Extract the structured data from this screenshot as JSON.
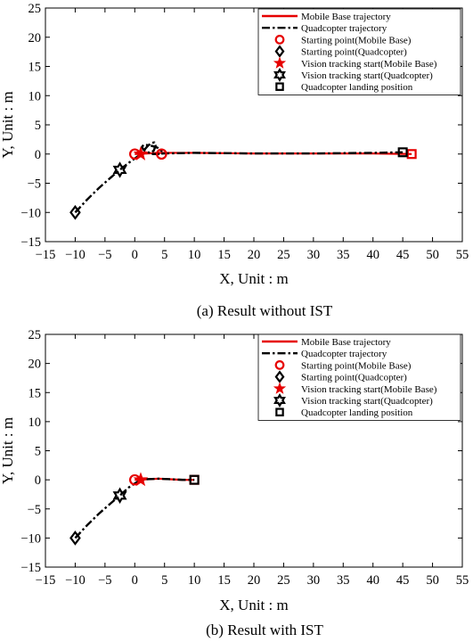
{
  "chart_data": [
    {
      "type": "line",
      "caption": "(a) Result without IST",
      "xlabel": "X, Unit : m",
      "ylabel": "Y, Unit : m",
      "xlim": [
        -15,
        55
      ],
      "ylim": [
        -15,
        25
      ],
      "xticks": [
        "−15",
        "−10",
        "−5",
        "0",
        "5",
        "10",
        "15",
        "20",
        "25",
        "30",
        "35",
        "40",
        "45",
        "50",
        "55"
      ],
      "yticks": [
        "−15",
        "−10",
        "−5",
        "0",
        "5",
        "10",
        "15",
        "20",
        "25"
      ],
      "legend_position": "top-right",
      "series": [
        {
          "name": "Mobile Base trajectory",
          "color": "#e60000",
          "style": "solid",
          "x": [
            0,
            2,
            4,
            10,
            20,
            30,
            40,
            46.5
          ],
          "y": [
            0,
            0.1,
            0.2,
            0.2,
            0.1,
            0.1,
            0.1,
            0
          ]
        },
        {
          "name": "Quadcopter trajectory",
          "color": "#000000",
          "style": "dashdot",
          "x": [
            -10,
            -8,
            -6,
            -4,
            -2.5,
            -1,
            0.5,
            1.5,
            2.2,
            2.8,
            3.3,
            3.5,
            3.2,
            2.7,
            2.1,
            1.5,
            1.2,
            1.5,
            2.5,
            3.8,
            4.5,
            4,
            3,
            5,
            10,
            20,
            30,
            40,
            45
          ],
          "y": [
            -10,
            -7.8,
            -5.8,
            -4,
            -2.7,
            -1.5,
            -0.4,
            0.6,
            1.4,
            1.9,
            2,
            1.4,
            0.6,
            0.2,
            0.3,
            0.7,
            1.2,
            1.6,
            1.5,
            1.1,
            0.5,
            0,
            0,
            0.1,
            0.2,
            0.1,
            0.1,
            0.2,
            0.3
          ]
        }
      ],
      "markers": [
        {
          "name": "Starting point(Mobile Base)",
          "symbol": "circle",
          "color": "#e60000",
          "x": 0,
          "y": 0
        },
        {
          "name": "Starting point(Quadcopter)",
          "symbol": "diamond",
          "color": "#000000",
          "x": -10,
          "y": -10
        },
        {
          "name": "Vision tracking start(Mobile Base)",
          "symbol": "star",
          "color": "#e60000",
          "x": 1,
          "y": 0
        },
        {
          "name": "Vision tracking start(Quadcopter)",
          "symbol": "hexagram",
          "color": "#000000",
          "x": -2.5,
          "y": -2.7
        },
        {
          "name": "Quadcopter landing position",
          "symbol": "square",
          "color": "#000000",
          "x": 45,
          "y": 0.3
        }
      ],
      "extra_markers": [
        {
          "symbol": "circle",
          "color": "#e60000",
          "x": 4.5,
          "y": 0
        },
        {
          "symbol": "square",
          "color": "#e60000",
          "x": 46.5,
          "y": 0
        }
      ]
    },
    {
      "type": "line",
      "caption": "(b) Result with IST",
      "xlabel": "X, Unit : m",
      "ylabel": "Y, Unit : m",
      "xlim": [
        -15,
        55
      ],
      "ylim": [
        -15,
        25
      ],
      "xticks": [
        "−15",
        "−10",
        "−5",
        "0",
        "5",
        "10",
        "15",
        "20",
        "25",
        "30",
        "35",
        "40",
        "45",
        "50",
        "55"
      ],
      "yticks": [
        "−15",
        "−10",
        "−5",
        "0",
        "5",
        "10",
        "15",
        "20",
        "25"
      ],
      "legend_position": "top-right",
      "series": [
        {
          "name": "Mobile Base trajectory",
          "color": "#e60000",
          "style": "solid",
          "x": [
            0,
            1,
            2,
            4,
            6,
            8,
            10
          ],
          "y": [
            0,
            0,
            0.1,
            0.2,
            0.1,
            0,
            0
          ]
        },
        {
          "name": "Quadcopter trajectory",
          "color": "#000000",
          "style": "dashdot",
          "x": [
            -10,
            -8,
            -6,
            -4,
            -2.5,
            -1,
            0.5,
            2,
            4,
            6,
            8,
            10
          ],
          "y": [
            -10,
            -7.8,
            -5.8,
            -4,
            -2.7,
            -1.3,
            -0.3,
            0.1,
            0.2,
            0.1,
            0,
            0
          ]
        }
      ],
      "markers": [
        {
          "name": "Starting point(Mobile Base)",
          "symbol": "circle",
          "color": "#e60000",
          "x": 0,
          "y": 0
        },
        {
          "name": "Starting point(Quadcopter)",
          "symbol": "diamond",
          "color": "#000000",
          "x": -10,
          "y": -10
        },
        {
          "name": "Vision tracking start(Mobile Base)",
          "symbol": "star",
          "color": "#e60000",
          "x": 1,
          "y": 0
        },
        {
          "name": "Vision tracking start(Quadcopter)",
          "symbol": "hexagram",
          "color": "#000000",
          "x": -2.5,
          "y": -2.7
        },
        {
          "name": "Quadcopter landing position",
          "symbol": "square",
          "color": "#000000",
          "x": 10,
          "y": 0
        }
      ],
      "extra_markers": [
        {
          "symbol": "square",
          "color": "#e60000",
          "x": 10,
          "y": 0
        }
      ]
    }
  ]
}
